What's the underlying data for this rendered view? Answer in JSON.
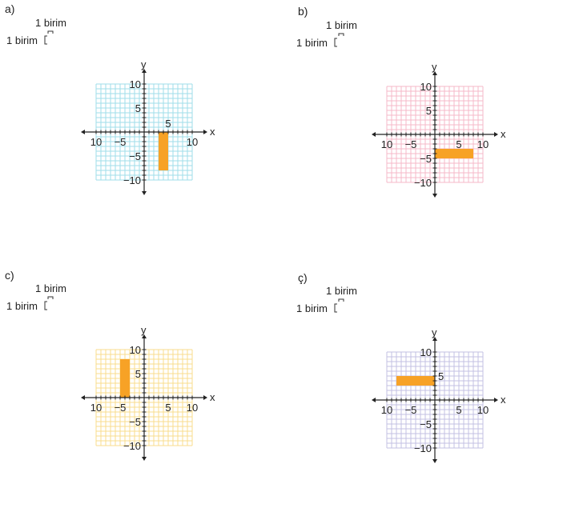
{
  "unit_label": "1 birim",
  "axis_x_label": "x",
  "axis_y_label": "y",
  "rect_color": "#F7A226",
  "chart_data": [
    {
      "type": "diagram",
      "panel_label": "a)",
      "grid_color": "#9FDDEA",
      "xlim": [
        -10,
        10
      ],
      "ylim": [
        -10,
        10
      ],
      "x_ticks": [
        "10",
        "−5",
        "5",
        "10"
      ],
      "y_ticks": [
        "10",
        "5",
        "−5",
        "−10"
      ],
      "rectangle": {
        "x_min": 3,
        "x_max": 5,
        "y_min": -8,
        "y_max": 0
      }
    },
    {
      "type": "diagram",
      "panel_label": "b)",
      "grid_color": "#F6B9C9",
      "xlim": [
        -10,
        10
      ],
      "ylim": [
        -10,
        10
      ],
      "x_ticks": [
        "10",
        "−5",
        "5",
        "10"
      ],
      "y_ticks": [
        "10",
        "5",
        "−5",
        "−10"
      ],
      "rectangle": {
        "x_min": 0,
        "x_max": 8,
        "y_min": -5,
        "y_max": -3
      }
    },
    {
      "type": "diagram",
      "panel_label": "c)",
      "grid_color": "#F8DC8E",
      "xlim": [
        -10,
        10
      ],
      "ylim": [
        -10,
        10
      ],
      "x_ticks": [
        "10",
        "−5",
        "5",
        "10"
      ],
      "y_ticks": [
        "10",
        "5",
        "−5",
        "−10"
      ],
      "rectangle": {
        "x_min": -5,
        "x_max": -3,
        "y_min": 0,
        "y_max": 8
      }
    },
    {
      "type": "diagram",
      "panel_label": "ç)",
      "grid_color": "#C3C1E3",
      "xlim": [
        -10,
        10
      ],
      "ylim": [
        -10,
        10
      ],
      "x_ticks": [
        "10",
        "−5",
        "5",
        "10"
      ],
      "y_ticks": [
        "10",
        "5",
        "−5",
        "−10"
      ],
      "rectangle": {
        "x_min": -8,
        "x_max": 0,
        "y_min": 3,
        "y_max": 5
      }
    }
  ]
}
